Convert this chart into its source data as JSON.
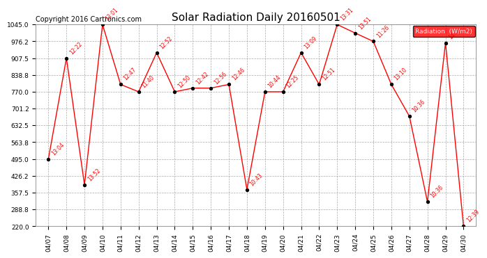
{
  "title": "Solar Radiation Daily 20160501",
  "copyright": "Copyright 2016 Cartronics.com",
  "legend_label": "Radiation  (W/m2)",
  "x_labels": [
    "04/07",
    "04/08",
    "04/09",
    "04/10",
    "04/11",
    "04/12",
    "04/13",
    "04/14",
    "04/15",
    "04/16",
    "04/17",
    "04/18",
    "04/19",
    "04/20",
    "04/21",
    "04/22",
    "04/23",
    "04/24",
    "04/25",
    "04/26",
    "04/27",
    "04/28",
    "04/29",
    "04/30"
  ],
  "y_values": [
    495.0,
    907.5,
    390.0,
    1045.0,
    800.0,
    770.0,
    930.0,
    770.0,
    785.0,
    785.0,
    800.0,
    370.0,
    770.0,
    770.0,
    930.0,
    800.0,
    1045.0,
    1010.0,
    976.2,
    800.0,
    670.0,
    320.0,
    970.0,
    220.0
  ],
  "point_labels": [
    "13:04",
    "12:22",
    "13:52",
    "13:01",
    "12:47",
    "11:40",
    "12:52",
    "12:50",
    "12:42",
    "12:56",
    "12:46",
    "10:43",
    "10:44",
    "12:25",
    "13:09",
    "12:51",
    "13:31",
    "13:51",
    "11:26",
    "13:10",
    "10:36",
    "10:36",
    "14:0",
    "12:39"
  ],
  "ylim_min": 220.0,
  "ylim_max": 1045.0,
  "ytick_values": [
    220.0,
    288.8,
    357.5,
    426.2,
    495.0,
    563.8,
    632.5,
    701.2,
    770.0,
    838.8,
    907.5,
    976.2,
    1045.0
  ],
  "line_color": "red",
  "marker_color": "black",
  "bg_color": "white",
  "grid_color": "#aaaaaa",
  "title_fontsize": 11,
  "copyright_fontsize": 7,
  "legend_bg": "red",
  "legend_text_color": "white",
  "figwidth": 6.9,
  "figheight": 3.75,
  "dpi": 100
}
